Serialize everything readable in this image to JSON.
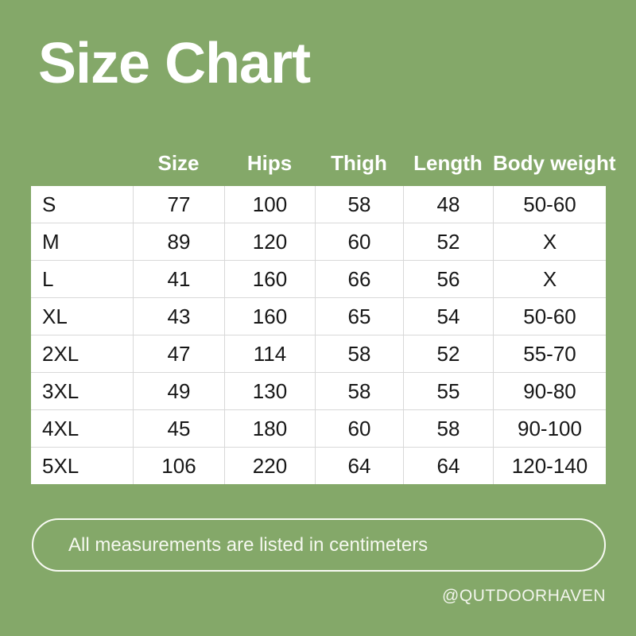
{
  "title": "Size Chart",
  "handle": "@QUTDOORHAVEN",
  "note": "All measurements are listed in centimeters",
  "colors": {
    "background": "#84a869",
    "table_background": "#ffffff",
    "table_grid_line": "#d8d8d8",
    "table_text": "#171717",
    "heading_text": "#ffffff",
    "pill_border": "#f8faf3"
  },
  "chart_data": {
    "type": "table",
    "title": "Size Chart",
    "columns": [
      "",
      "Size",
      "Hips",
      "Thigh",
      "Length",
      "Body weight"
    ],
    "rows": [
      [
        "S",
        "77",
        "100",
        "58",
        "48",
        "50-60"
      ],
      [
        "M",
        "89",
        "120",
        "60",
        "52",
        "X"
      ],
      [
        "L",
        "41",
        "160",
        "66",
        "56",
        "X"
      ],
      [
        "XL",
        "43",
        "160",
        "65",
        "54",
        "50-60"
      ],
      [
        "2XL",
        "47",
        "114",
        "58",
        "52",
        "55-70"
      ],
      [
        "3XL",
        "49",
        "130",
        "58",
        "55",
        "90-80"
      ],
      [
        "4XL",
        "45",
        "180",
        "60",
        "58",
        "90-100"
      ],
      [
        "5XL",
        "106",
        "220",
        "64",
        "64",
        "120-140"
      ]
    ],
    "note": "All measurements are listed in centimeters",
    "units": "centimeters",
    "layout": {
      "grid": "light-gray inner lines",
      "header_position": "above table on green background"
    }
  }
}
